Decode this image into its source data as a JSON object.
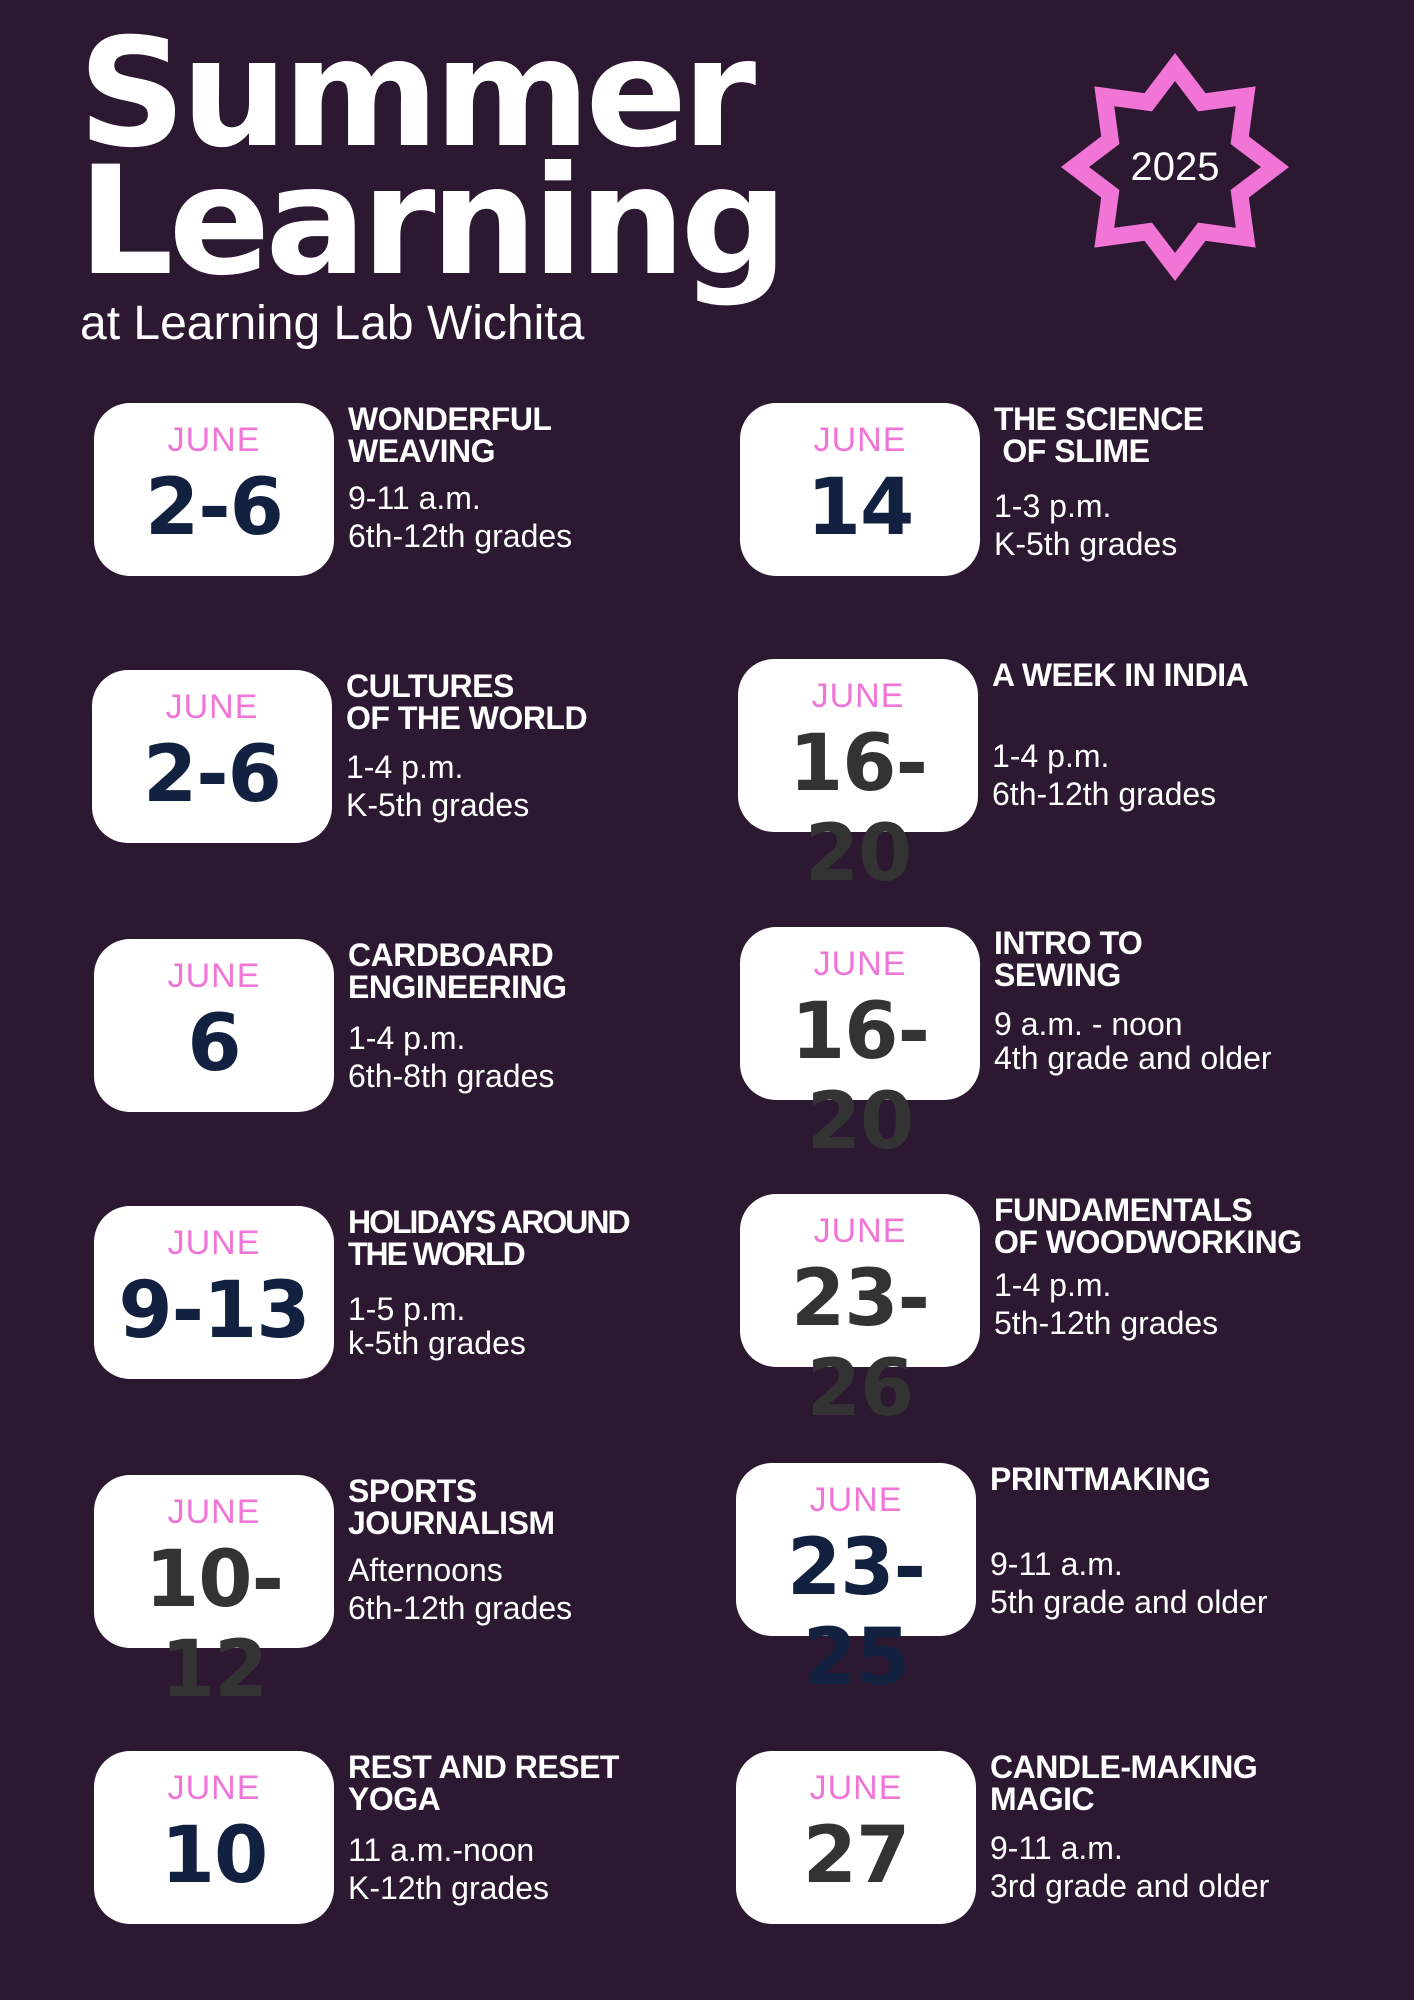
{
  "header": {
    "title_line1": "Summer",
    "title_line2": "Learning",
    "subtitle": "at Learning Lab Wichita",
    "year": "2025"
  },
  "colors": {
    "background": "#2c1831",
    "accent_pink": "#f075d6",
    "date_navy": "#12213f",
    "date_gray": "#333333",
    "card": "#ffffff"
  },
  "events": [
    {
      "month": "JUNE",
      "day": "2-6",
      "title_lines": [
        "WONDERFUL",
        "WEAVING"
      ],
      "time": "9-11 a.m.",
      "audience": "6th-12th grades"
    },
    {
      "month": "JUNE",
      "day": "14",
      "title_lines": [
        "THE SCIENCE",
        " OF SLIME"
      ],
      "time": "1-3 p.m.",
      "audience": "K-5th grades"
    },
    {
      "month": "JUNE",
      "day": "2-6",
      "title_lines": [
        "CULTURES",
        "OF THE WORLD"
      ],
      "time": "1-4 p.m.",
      "audience": "K-5th grades"
    },
    {
      "month": "JUNE",
      "day": "16-20",
      "title_lines": [
        "A WEEK IN INDIA"
      ],
      "time": "1-4 p.m.",
      "audience": "6th-12th grades"
    },
    {
      "month": "JUNE",
      "day": "6",
      "title_lines": [
        "CARDBOARD",
        "ENGINEERING"
      ],
      "time": "1-4 p.m.",
      "audience": "6th-8th grades"
    },
    {
      "month": "JUNE",
      "day": "16-20",
      "title_lines": [
        "INTRO TO",
        "SEWING"
      ],
      "time": "9 a.m. - noon",
      "audience": "4th grade and older"
    },
    {
      "month": "JUNE",
      "day": "9-13",
      "title_lines": [
        "HOLIDAYS AROUND",
        "THE WORLD"
      ],
      "time": "1-5 p.m.",
      "audience": "k-5th grades"
    },
    {
      "month": "JUNE",
      "day": "23-26",
      "title_lines": [
        "FUNDAMENTALS",
        "OF WOODWORKING"
      ],
      "time": "1-4 p.m.",
      "audience": "5th-12th grades"
    },
    {
      "month": "JUNE",
      "day": "10-12",
      "title_lines": [
        "SPORTS",
        "JOURNALISM"
      ],
      "time": "Afternoons",
      "audience": "6th-12th grades"
    },
    {
      "month": "JUNE",
      "day": "23-25",
      "title_lines": [
        "PRINTMAKING"
      ],
      "time": "9-11 a.m.",
      "audience": "5th grade and older"
    },
    {
      "month": "JUNE",
      "day": "10",
      "title_lines": [
        "REST AND RESET",
        "YOGA"
      ],
      "time": "11 a.m.-noon",
      "audience": "K-12th grades"
    },
    {
      "month": "JUNE",
      "day": "27",
      "title_lines": [
        "CANDLE-MAKING",
        "MAGIC"
      ],
      "time": "9-11 a.m.",
      "audience": "3rd grade and older"
    }
  ]
}
